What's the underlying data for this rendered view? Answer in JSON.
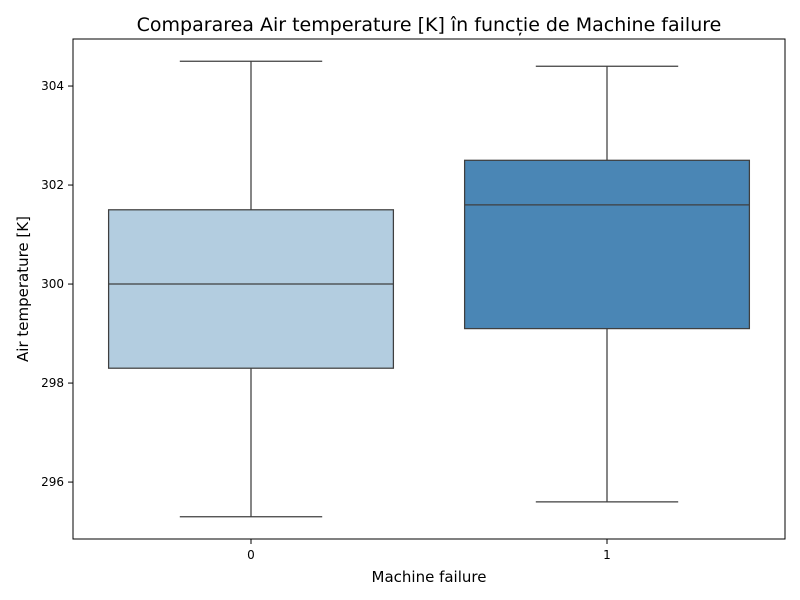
{
  "chart_data": {
    "type": "box",
    "title": "Compararea Air temperature [K] în funcție de Machine failure",
    "xlabel": "Machine failure",
    "ylabel": "Air temperature [K]",
    "ylim": [
      294.85,
      304.95
    ],
    "yticks": [
      296,
      298,
      300,
      302,
      304
    ],
    "categories": [
      "0",
      "1"
    ],
    "boxes": [
      {
        "category": "0",
        "whisker_low": 295.3,
        "q1": 298.3,
        "median": 300.0,
        "q3": 301.5,
        "whisker_high": 304.5,
        "color": "#b3cde0"
      },
      {
        "category": "1",
        "whisker_low": 295.6,
        "q1": 299.1,
        "median": 301.6,
        "q3": 302.5,
        "whisker_high": 304.4,
        "color": "#4a86b5"
      }
    ],
    "grid": false,
    "legend": "none"
  }
}
